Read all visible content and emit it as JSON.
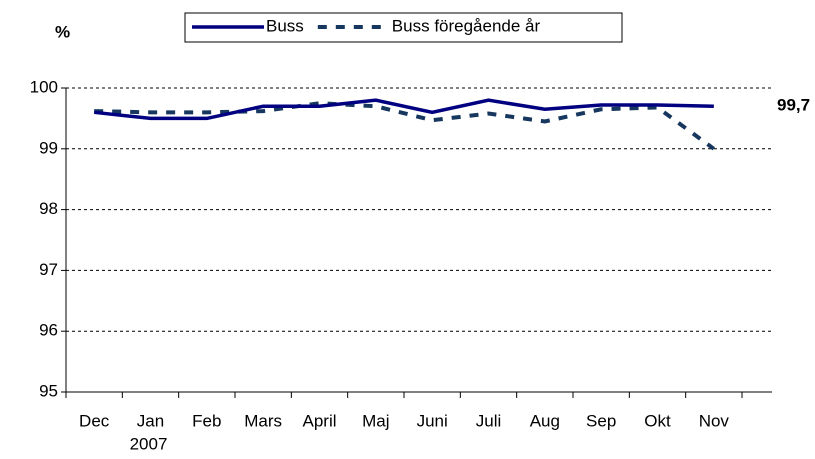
{
  "chart_data": {
    "type": "line",
    "y_unit": "%",
    "categories": [
      "Dec",
      "Jan",
      "Feb",
      "Mars",
      "April",
      "Maj",
      "Juni",
      "Juli",
      "Aug",
      "Sep",
      "Okt",
      "Nov"
    ],
    "category_sublabels": [
      null,
      "2007",
      null,
      null,
      null,
      null,
      null,
      null,
      null,
      null,
      null,
      null
    ],
    "series": [
      {
        "name": "Buss",
        "color": "#000080",
        "dash": false,
        "values": [
          99.6,
          99.5,
          99.5,
          99.7,
          99.7,
          99.8,
          99.6,
          99.8,
          99.65,
          99.72,
          99.72,
          99.7
        ],
        "value_labels": [
          null,
          null,
          null,
          null,
          null,
          null,
          null,
          null,
          null,
          null,
          null,
          "99,7"
        ]
      },
      {
        "name": "Buss föregående år",
        "color": "#17375e",
        "dash": true,
        "values": [
          99.62,
          99.6,
          99.6,
          99.62,
          99.75,
          99.7,
          99.47,
          99.58,
          99.45,
          99.65,
          99.68,
          99.0
        ]
      }
    ],
    "ylim": [
      95,
      100
    ],
    "yticks": [
      95,
      96,
      97,
      98,
      99,
      100
    ],
    "grid": true,
    "legend": "top"
  }
}
